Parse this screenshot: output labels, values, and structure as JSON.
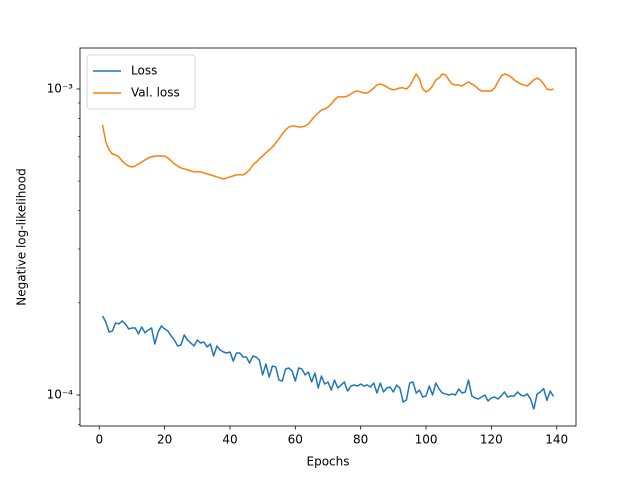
{
  "chart_data": {
    "type": "line",
    "xlabel": "Epochs",
    "ylabel": "Negative log-likelihood",
    "log_y": true,
    "legend": "upper left",
    "xlim": [
      -5.9,
      145.9
    ],
    "xticks": [
      0,
      20,
      40,
      60,
      80,
      100,
      120,
      140
    ],
    "ylim": [
      7.92e-05,
      0.001361
    ],
    "yticks": [
      {
        "value": 0.001,
        "label": "10⁻³"
      },
      {
        "value": 0.0001,
        "label": "10⁻⁴"
      }
    ],
    "yminorticks": [
      8e-05,
      9e-05,
      0.0002,
      0.0003,
      0.0004,
      0.0005,
      0.0006,
      0.0007,
      0.0008,
      0.0009
    ],
    "x": [
      1,
      2,
      3,
      4,
      5,
      6,
      7,
      8,
      9,
      10,
      11,
      12,
      13,
      14,
      15,
      16,
      17,
      18,
      19,
      20,
      21,
      22,
      23,
      24,
      25,
      26,
      27,
      28,
      29,
      30,
      31,
      32,
      33,
      34,
      35,
      36,
      37,
      38,
      39,
      40,
      41,
      42,
      43,
      44,
      45,
      46,
      47,
      48,
      49,
      50,
      51,
      52,
      53,
      54,
      55,
      56,
      57,
      58,
      59,
      60,
      61,
      62,
      63,
      64,
      65,
      66,
      67,
      68,
      69,
      70,
      71,
      72,
      73,
      74,
      75,
      76,
      77,
      78,
      79,
      80,
      81,
      82,
      83,
      84,
      85,
      86,
      87,
      88,
      89,
      90,
      91,
      92,
      93,
      94,
      95,
      96,
      97,
      98,
      99,
      100,
      101,
      102,
      103,
      104,
      105,
      106,
      107,
      108,
      109,
      110,
      111,
      112,
      113,
      114,
      115,
      116,
      117,
      118,
      119,
      120,
      121,
      122,
      123,
      124,
      125,
      126,
      127,
      128,
      129,
      130,
      131,
      132,
      133,
      134,
      135,
      136,
      137,
      138,
      139
    ],
    "series": [
      {
        "name": "Loss",
        "color": "#1f77b4",
        "values": [
          0.0001812,
          0.0001733,
          0.0001606,
          0.0001618,
          0.000172,
          0.0001707,
          0.0001746,
          0.0001707,
          0.0001644,
          0.0001656,
          0.0001656,
          0.0001584,
          0.0001669,
          0.0001596,
          0.0001631,
          0.0001656,
          0.0001468,
          0.0001606,
          0.0001681,
          0.0001644,
          0.0001618,
          0.000156,
          0.0001512,
          0.0001446,
          0.0001457,
          0.0001572,
          0.0001512,
          0.0001479,
          0.0001446,
          0.0001512,
          0.0001479,
          0.000149,
          0.0001436,
          0.0001468,
          0.0001341,
          0.0001446,
          0.0001403,
          0.0001382,
          0.0001372,
          0.0001382,
          0.0001291,
          0.0001372,
          0.0001372,
          0.0001331,
          0.0001331,
          0.0001272,
          0.0001341,
          0.0001331,
          0.0001301,
          0.0001163,
          0.0001263,
          0.0001145,
          0.0001244,
          0.0001235,
          0.0001119,
          0.0001111,
          0.0001216,
          0.0001225,
          0.0001198,
          0.0001111,
          0.0001225,
          0.0001216,
          0.0001163,
          0.0001189,
          0.0001103,
          0.000118,
          0.0001054,
          0.0001154,
          0.0001086,
          0.0001103,
          0.0001038,
          0.0001119,
          0.0001054,
          0.0001078,
          0.0001103,
          0.000103,
          0.000107,
          0.0001078,
          0.000107,
          0.0001086,
          0.000107,
          0.0001078,
          0.0001062,
          0.0001094,
          0.0001015,
          0.0001094,
          0.0001023,
          0.0001054,
          0.0001062,
          0.0001023,
          0.0001078,
          0.0001054,
          9.49e-05,
          9.63e-05,
          0.0001094,
          0.0001103,
          0.0001015,
          0.0001038,
          9.85e-05,
          9.93e-05,
          0.000107,
          0.0001,
          0.0001094,
          0.0001046,
          0.0001015,
          0.0001008,
          0.0001,
          0.0001008,
          0.0001,
          0.0001046,
          0.0001015,
          0.0001023,
          0.0001119,
          9.93e-05,
          9.78e-05,
          9.7e-05,
          9.85e-05,
          0.0001,
          9.56e-05,
          9.78e-05,
          9.85e-05,
          9.7e-05,
          9.93e-05,
          0.0001023,
          9.85e-05,
          9.93e-05,
          9.93e-05,
          0.0001023,
          0.0001,
          9.93e-05,
          0.0001008,
          9.7e-05,
          9e-05,
          0.0001008,
          0.0001023,
          0.000105,
          9.6e-05,
          0.000103,
          9.9e-05
        ]
      },
      {
        "name": "Val. loss",
        "color": "#ff7f0e",
        "values": [
          0.000763,
          0.000671,
          0.000632,
          0.000613,
          0.000609,
          0.0006,
          0.000582,
          0.000569,
          0.00056,
          0.000556,
          0.00056,
          0.000569,
          0.000577,
          0.000586,
          0.000595,
          0.0006,
          0.000604,
          0.000604,
          0.000604,
          0.000604,
          0.000595,
          0.000582,
          0.000569,
          0.00056,
          0.000552,
          0.000548,
          0.000544,
          0.00054,
          0.000536,
          0.000536,
          0.000536,
          0.000532,
          0.000528,
          0.000524,
          0.00052,
          0.000516,
          0.000512,
          0.000508,
          0.000512,
          0.000516,
          0.00052,
          0.000524,
          0.000524,
          0.000524,
          0.000532,
          0.000544,
          0.000565,
          0.000577,
          0.000591,
          0.000604,
          0.000618,
          0.000632,
          0.000646,
          0.000666,
          0.000687,
          0.000713,
          0.000735,
          0.000751,
          0.000757,
          0.000757,
          0.000751,
          0.000751,
          0.000757,
          0.000769,
          0.000792,
          0.000816,
          0.000835,
          0.000854,
          0.00086,
          0.000873,
          0.000893,
          0.000921,
          0.000942,
          0.000942,
          0.000942,
          0.000949,
          0.000963,
          0.000978,
          0.000985,
          0.000978,
          0.00097,
          0.00097,
          0.000985,
          0.001008,
          0.00103,
          0.001038,
          0.00103,
          0.001015,
          0.001,
          0.000993,
          0.001,
          0.001008,
          0.001008,
          0.001,
          0.001023,
          0.00107,
          0.001119,
          0.001078,
          0.001,
          0.000978,
          0.000993,
          0.001023,
          0.00107,
          0.001086,
          0.001119,
          0.001111,
          0.00107,
          0.001038,
          0.00103,
          0.00103,
          0.001023,
          0.001038,
          0.001054,
          0.001038,
          0.001023,
          0.001,
          0.000985,
          0.000985,
          0.000985,
          0.000985,
          0.001008,
          0.001054,
          0.001103,
          0.001119,
          0.001111,
          0.001094,
          0.00107,
          0.001054,
          0.001038,
          0.00103,
          0.001023,
          0.001046,
          0.00107,
          0.001086,
          0.00107,
          0.001038,
          0.001,
          0.000993,
          0.001
        ]
      }
    ]
  }
}
